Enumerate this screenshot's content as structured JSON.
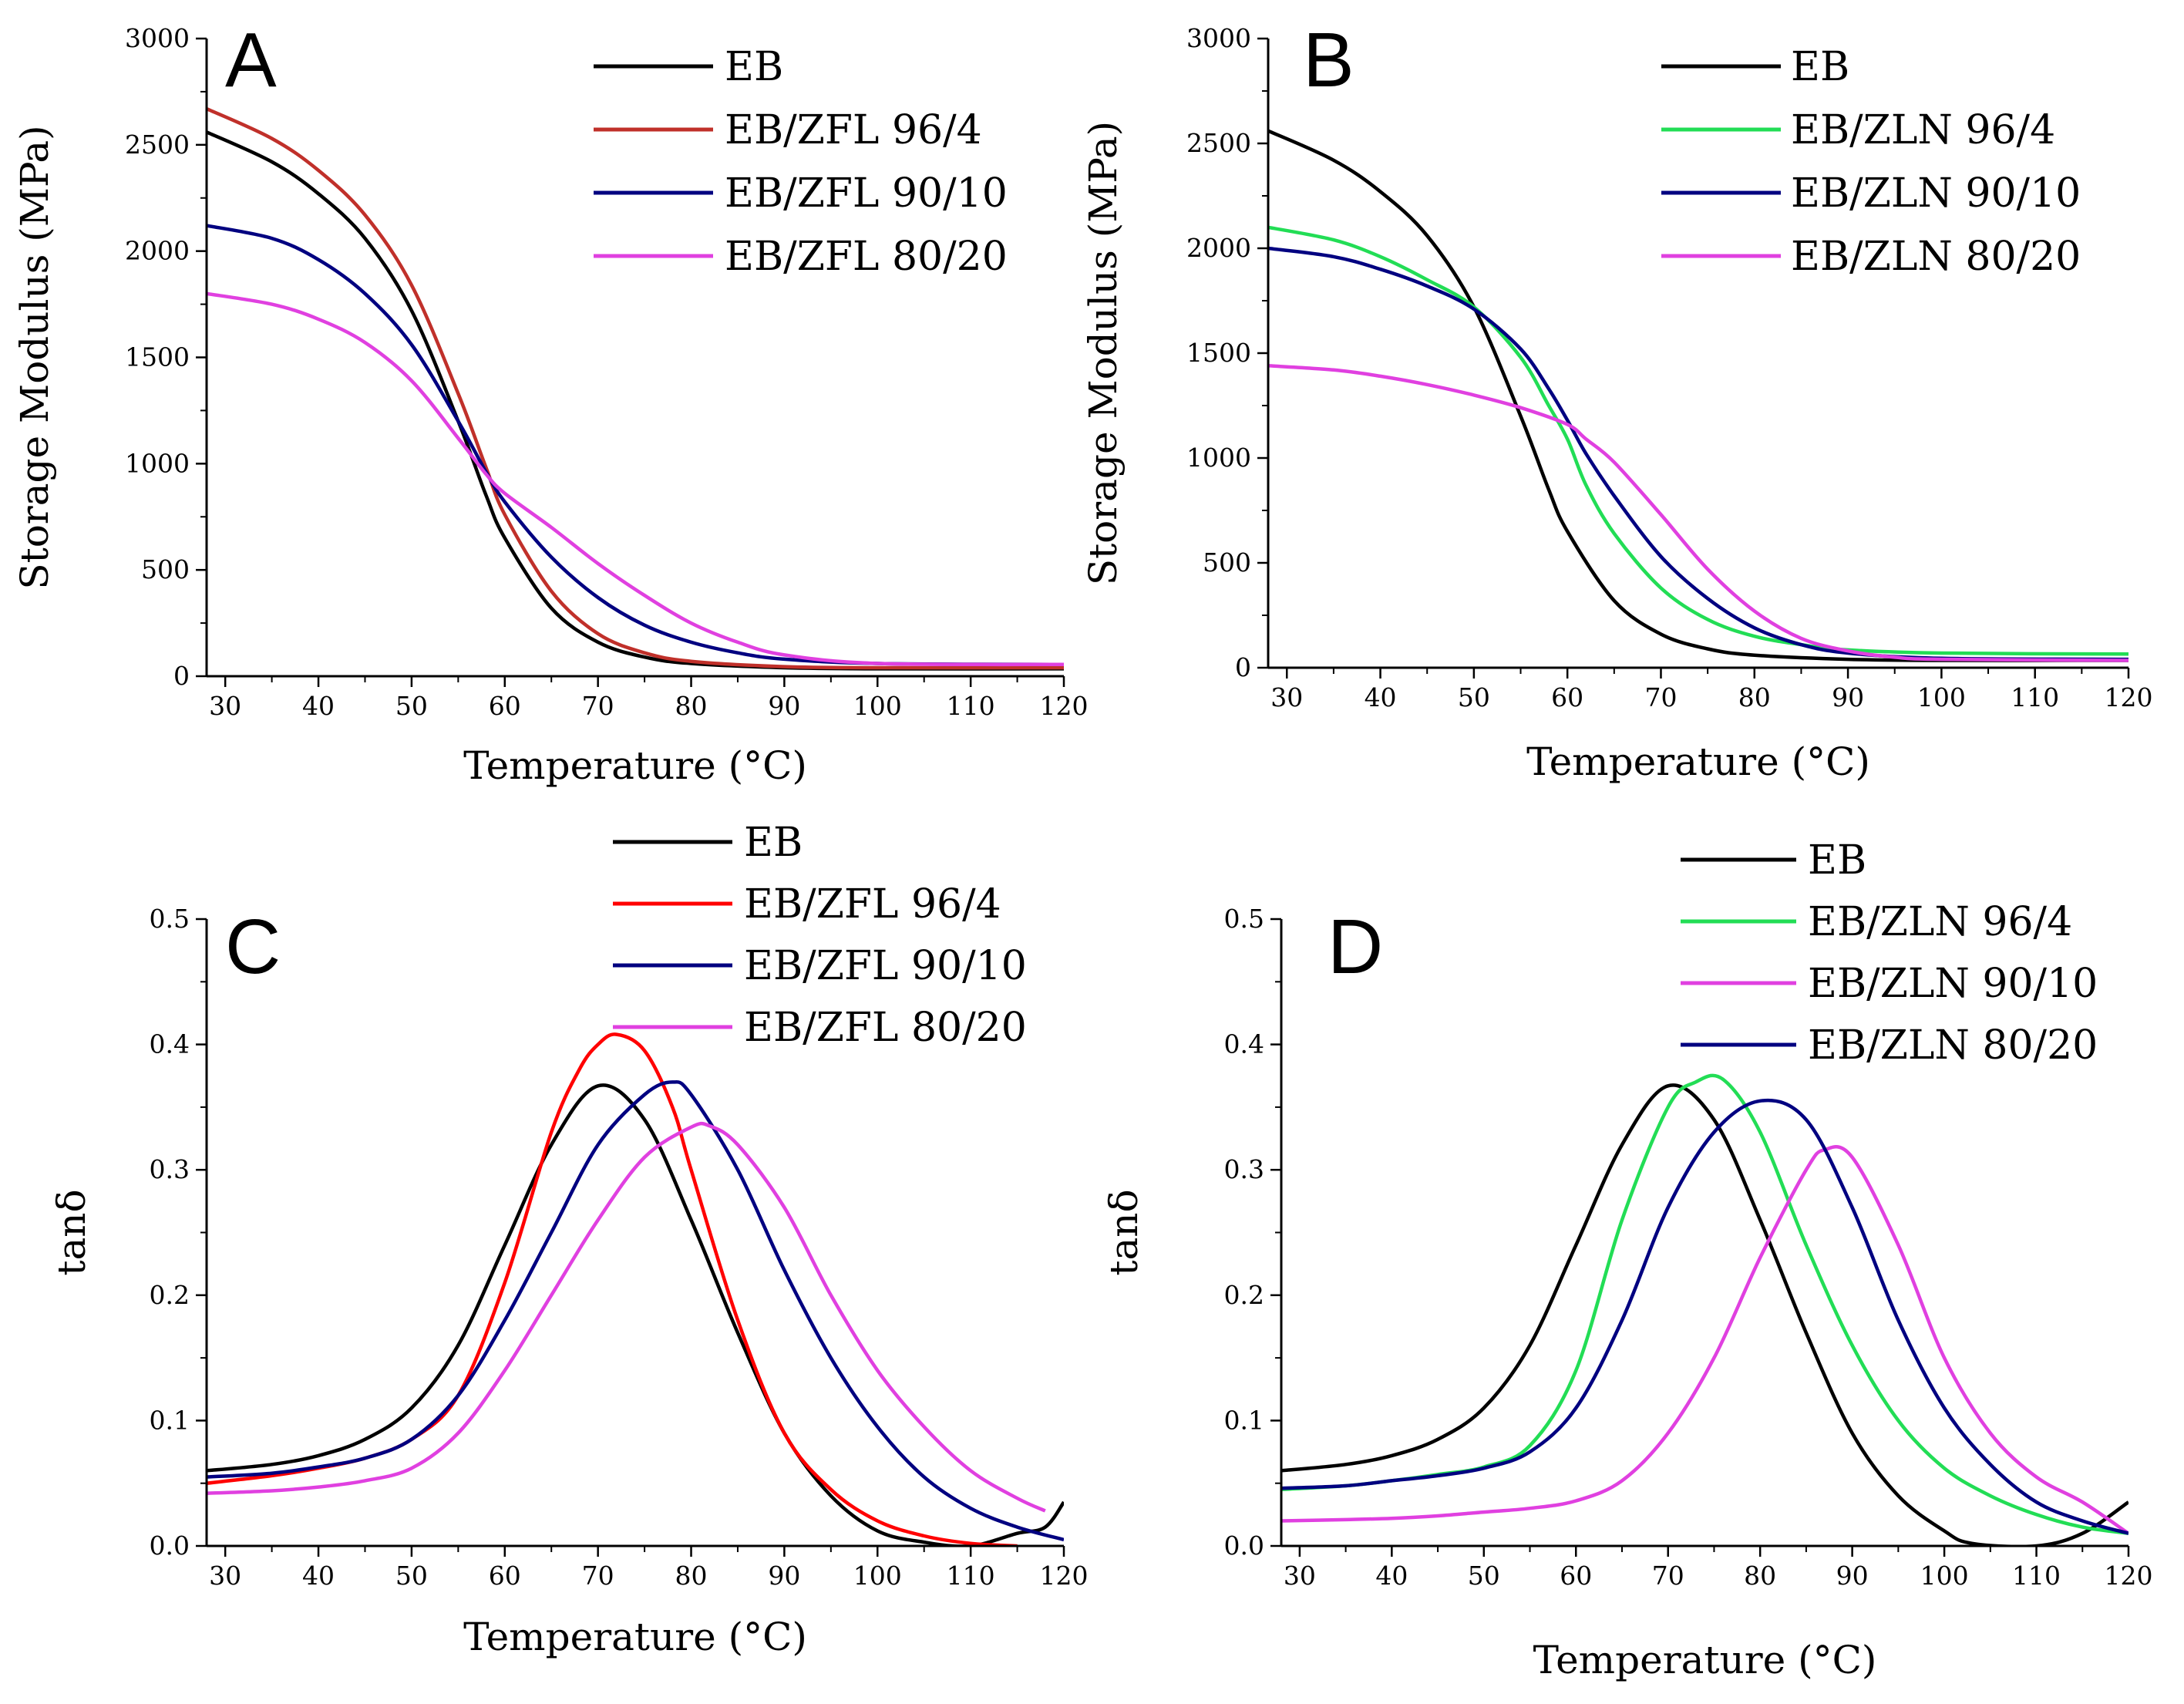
{
  "figure": {
    "description_free": true,
    "background": "#ffffff"
  },
  "colors": {
    "black": "#000000",
    "red_dark": "#c0302a",
    "red_bright": "#ff0000",
    "blue": "#000080",
    "magenta": "#e040e0",
    "green": "#22dd55"
  },
  "chart_data": [
    {
      "id": "A",
      "panel_label": "A",
      "type": "line",
      "xlabel": "Temperature (°C)",
      "ylabel": "Storage Modulus (MPa)",
      "xlim": [
        28,
        120
      ],
      "ylim": [
        0,
        3000
      ],
      "xticks": [
        30,
        40,
        50,
        60,
        70,
        80,
        90,
        100,
        110,
        120
      ],
      "yticks": [
        0,
        500,
        1000,
        1500,
        2000,
        2500,
        3000
      ],
      "legend_position": "top-right",
      "series": [
        {
          "name": "EB",
          "color": "#000000",
          "x": [
            28,
            35,
            40,
            45,
            50,
            55,
            58,
            60,
            65,
            70,
            75,
            80,
            90,
            100,
            120
          ],
          "y": [
            2560,
            2420,
            2270,
            2060,
            1720,
            1200,
            850,
            650,
            320,
            160,
            90,
            60,
            40,
            35,
            35
          ]
        },
        {
          "name": "EB/ZFL 96/4",
          "color": "#c0302a",
          "x": [
            28,
            35,
            40,
            45,
            50,
            55,
            58,
            60,
            65,
            70,
            75,
            80,
            90,
            100,
            120
          ],
          "y": [
            2670,
            2530,
            2380,
            2170,
            1840,
            1330,
            980,
            760,
            400,
            200,
            110,
            70,
            45,
            40,
            40
          ]
        },
        {
          "name": "EB/ZFL 90/10",
          "color": "#000080",
          "x": [
            28,
            35,
            40,
            45,
            50,
            55,
            58,
            60,
            65,
            70,
            75,
            80,
            85,
            90,
            100,
            120
          ],
          "y": [
            2120,
            2060,
            1960,
            1800,
            1560,
            1200,
            960,
            820,
            560,
            370,
            240,
            160,
            110,
            80,
            60,
            55
          ]
        },
        {
          "name": "EB/ZFL 80/20",
          "color": "#e040e0",
          "x": [
            28,
            35,
            40,
            45,
            50,
            55,
            58,
            60,
            65,
            70,
            75,
            80,
            85,
            90,
            100,
            120
          ],
          "y": [
            1800,
            1750,
            1680,
            1570,
            1390,
            1120,
            950,
            860,
            700,
            530,
            380,
            250,
            160,
            100,
            60,
            55
          ]
        }
      ]
    },
    {
      "id": "B",
      "panel_label": "B",
      "type": "line",
      "xlabel": "Temperature (°C)",
      "ylabel": "Storage Modulus (MPa)",
      "xlim": [
        28,
        120
      ],
      "ylim": [
        0,
        3000
      ],
      "xticks": [
        30,
        40,
        50,
        60,
        70,
        80,
        90,
        100,
        110,
        120
      ],
      "yticks": [
        0,
        500,
        1000,
        1500,
        2000,
        2500,
        3000
      ],
      "legend_position": "top-right",
      "series": [
        {
          "name": "EB",
          "color": "#000000",
          "x": [
            28,
            35,
            40,
            45,
            50,
            55,
            58,
            60,
            65,
            70,
            75,
            80,
            90,
            100,
            120
          ],
          "y": [
            2560,
            2420,
            2270,
            2060,
            1720,
            1200,
            850,
            650,
            320,
            160,
            90,
            60,
            40,
            35,
            35
          ]
        },
        {
          "name": "EB/ZLN  96/4",
          "color": "#22dd55",
          "x": [
            28,
            35,
            40,
            45,
            50,
            55,
            58,
            60,
            62,
            65,
            70,
            75,
            80,
            85,
            90,
            100,
            120
          ],
          "y": [
            2100,
            2040,
            1960,
            1850,
            1720,
            1480,
            1250,
            1090,
            870,
            640,
            380,
            230,
            150,
            110,
            85,
            70,
            65
          ]
        },
        {
          "name": "EB/ZLN 90/10",
          "color": "#000080",
          "x": [
            28,
            35,
            40,
            45,
            50,
            55,
            58,
            60,
            62,
            65,
            70,
            75,
            80,
            85,
            90,
            100,
            120
          ],
          "y": [
            2000,
            1960,
            1900,
            1820,
            1710,
            1520,
            1330,
            1180,
            1020,
            820,
            530,
            330,
            190,
            110,
            70,
            45,
            40
          ]
        },
        {
          "name": "EB/ZLN 80/20",
          "color": "#e040e0",
          "x": [
            28,
            35,
            40,
            45,
            50,
            55,
            60,
            62,
            65,
            70,
            75,
            80,
            85,
            90,
            95,
            100,
            120
          ],
          "y": [
            1440,
            1420,
            1390,
            1350,
            1300,
            1240,
            1160,
            1090,
            980,
            730,
            470,
            270,
            140,
            80,
            50,
            40,
            35
          ]
        }
      ]
    },
    {
      "id": "C",
      "panel_label": "C",
      "type": "line",
      "xlabel": "Temperature (°C)",
      "ylabel": "tanδ",
      "xlim": [
        28,
        120
      ],
      "ylim": [
        0,
        0.5
      ],
      "xticks": [
        30,
        40,
        50,
        60,
        70,
        80,
        90,
        100,
        110,
        120
      ],
      "yticks": [
        0.0,
        0.1,
        0.2,
        0.3,
        0.4,
        0.5
      ],
      "ytick_labels": [
        "0.0",
        "0.1",
        "0.2",
        "0.3",
        "0.4",
        "0.5"
      ],
      "legend_position": "top-right",
      "series": [
        {
          "name": "EB",
          "color": "#000000",
          "x": [
            28,
            35,
            40,
            45,
            50,
            55,
            60,
            65,
            70,
            75,
            80,
            85,
            90,
            95,
            100,
            105,
            110,
            115,
            118,
            120
          ],
          "y": [
            0.06,
            0.065,
            0.072,
            0.085,
            0.11,
            0.16,
            0.24,
            0.32,
            0.367,
            0.34,
            0.26,
            0.17,
            0.09,
            0.04,
            0.012,
            0.003,
            0.0,
            0.01,
            0.015,
            0.035
          ]
        },
        {
          "name": "EB/ZFL 96/4",
          "color": "#ff0000",
          "x": [
            28,
            35,
            40,
            45,
            50,
            55,
            60,
            65,
            68,
            70,
            72,
            75,
            78,
            80,
            85,
            90,
            95,
            100,
            105,
            110,
            115
          ],
          "y": [
            0.05,
            0.056,
            0.062,
            0.07,
            0.085,
            0.12,
            0.21,
            0.33,
            0.38,
            0.4,
            0.408,
            0.395,
            0.35,
            0.3,
            0.18,
            0.09,
            0.045,
            0.02,
            0.008,
            0.002,
            0.0
          ]
        },
        {
          "name": "EB/ZFL 90/10",
          "color": "#000080",
          "x": [
            28,
            35,
            40,
            45,
            50,
            55,
            60,
            65,
            70,
            75,
            78,
            80,
            85,
            90,
            95,
            100,
            105,
            110,
            115,
            120
          ],
          "y": [
            0.055,
            0.058,
            0.063,
            0.07,
            0.085,
            0.12,
            0.18,
            0.25,
            0.32,
            0.36,
            0.37,
            0.36,
            0.3,
            0.22,
            0.15,
            0.095,
            0.055,
            0.03,
            0.015,
            0.005
          ]
        },
        {
          "name": "EB/ZFL 80/20",
          "color": "#e040e0",
          "x": [
            28,
            35,
            40,
            45,
            50,
            55,
            60,
            65,
            70,
            75,
            80,
            82,
            85,
            90,
            95,
            100,
            105,
            110,
            115,
            118
          ],
          "y": [
            0.042,
            0.044,
            0.047,
            0.052,
            0.062,
            0.09,
            0.14,
            0.2,
            0.26,
            0.31,
            0.334,
            0.335,
            0.32,
            0.27,
            0.2,
            0.14,
            0.095,
            0.06,
            0.038,
            0.028
          ]
        }
      ]
    },
    {
      "id": "D",
      "panel_label": "D",
      "type": "line",
      "xlabel": "Temperature (°C)",
      "ylabel": "tanδ",
      "xlim": [
        28,
        120
      ],
      "ylim": [
        0,
        0.5
      ],
      "xticks": [
        30,
        40,
        50,
        60,
        70,
        80,
        90,
        100,
        110,
        120
      ],
      "yticks": [
        0.0,
        0.1,
        0.2,
        0.3,
        0.4,
        0.5
      ],
      "ytick_labels": [
        "0.0",
        "0.1",
        "0.2",
        "0.3",
        "0.4",
        "0.5"
      ],
      "legend_position": "top-right",
      "series": [
        {
          "name": "EB",
          "color": "#000000",
          "x": [
            28,
            35,
            40,
            45,
            50,
            55,
            60,
            65,
            70,
            75,
            80,
            85,
            90,
            95,
            100,
            103,
            110,
            115,
            120
          ],
          "y": [
            0.06,
            0.065,
            0.072,
            0.085,
            0.11,
            0.16,
            0.24,
            0.32,
            0.367,
            0.34,
            0.26,
            0.17,
            0.09,
            0.04,
            0.012,
            0.002,
            0.0,
            0.01,
            0.035
          ]
        },
        {
          "name": "EB/ZLN 96/4",
          "color": "#22dd55",
          "x": [
            28,
            35,
            40,
            45,
            50,
            55,
            60,
            65,
            70,
            73,
            76,
            80,
            85,
            90,
            95,
            100,
            105,
            110,
            115,
            120
          ],
          "y": [
            0.045,
            0.048,
            0.052,
            0.057,
            0.063,
            0.08,
            0.14,
            0.26,
            0.35,
            0.37,
            0.372,
            0.33,
            0.24,
            0.16,
            0.1,
            0.062,
            0.04,
            0.025,
            0.015,
            0.01
          ]
        },
        {
          "name": "EB/ZLN 90/10",
          "color": "#e040e0",
          "x": [
            28,
            35,
            40,
            45,
            50,
            55,
            60,
            65,
            70,
            75,
            80,
            85,
            87,
            90,
            95,
            100,
            105,
            110,
            115,
            120
          ],
          "y": [
            0.02,
            0.021,
            0.022,
            0.024,
            0.027,
            0.03,
            0.036,
            0.052,
            0.09,
            0.15,
            0.23,
            0.3,
            0.316,
            0.31,
            0.24,
            0.15,
            0.09,
            0.055,
            0.035,
            0.01
          ]
        },
        {
          "name": "EB/ZLN 80/20",
          "color": "#000080",
          "x": [
            28,
            35,
            40,
            45,
            50,
            55,
            60,
            65,
            70,
            75,
            80,
            85,
            90,
            95,
            100,
            105,
            110,
            115,
            120
          ],
          "y": [
            0.046,
            0.048,
            0.052,
            0.056,
            0.062,
            0.075,
            0.11,
            0.18,
            0.27,
            0.33,
            0.355,
            0.34,
            0.27,
            0.18,
            0.11,
            0.065,
            0.035,
            0.02,
            0.01
          ]
        }
      ]
    }
  ]
}
